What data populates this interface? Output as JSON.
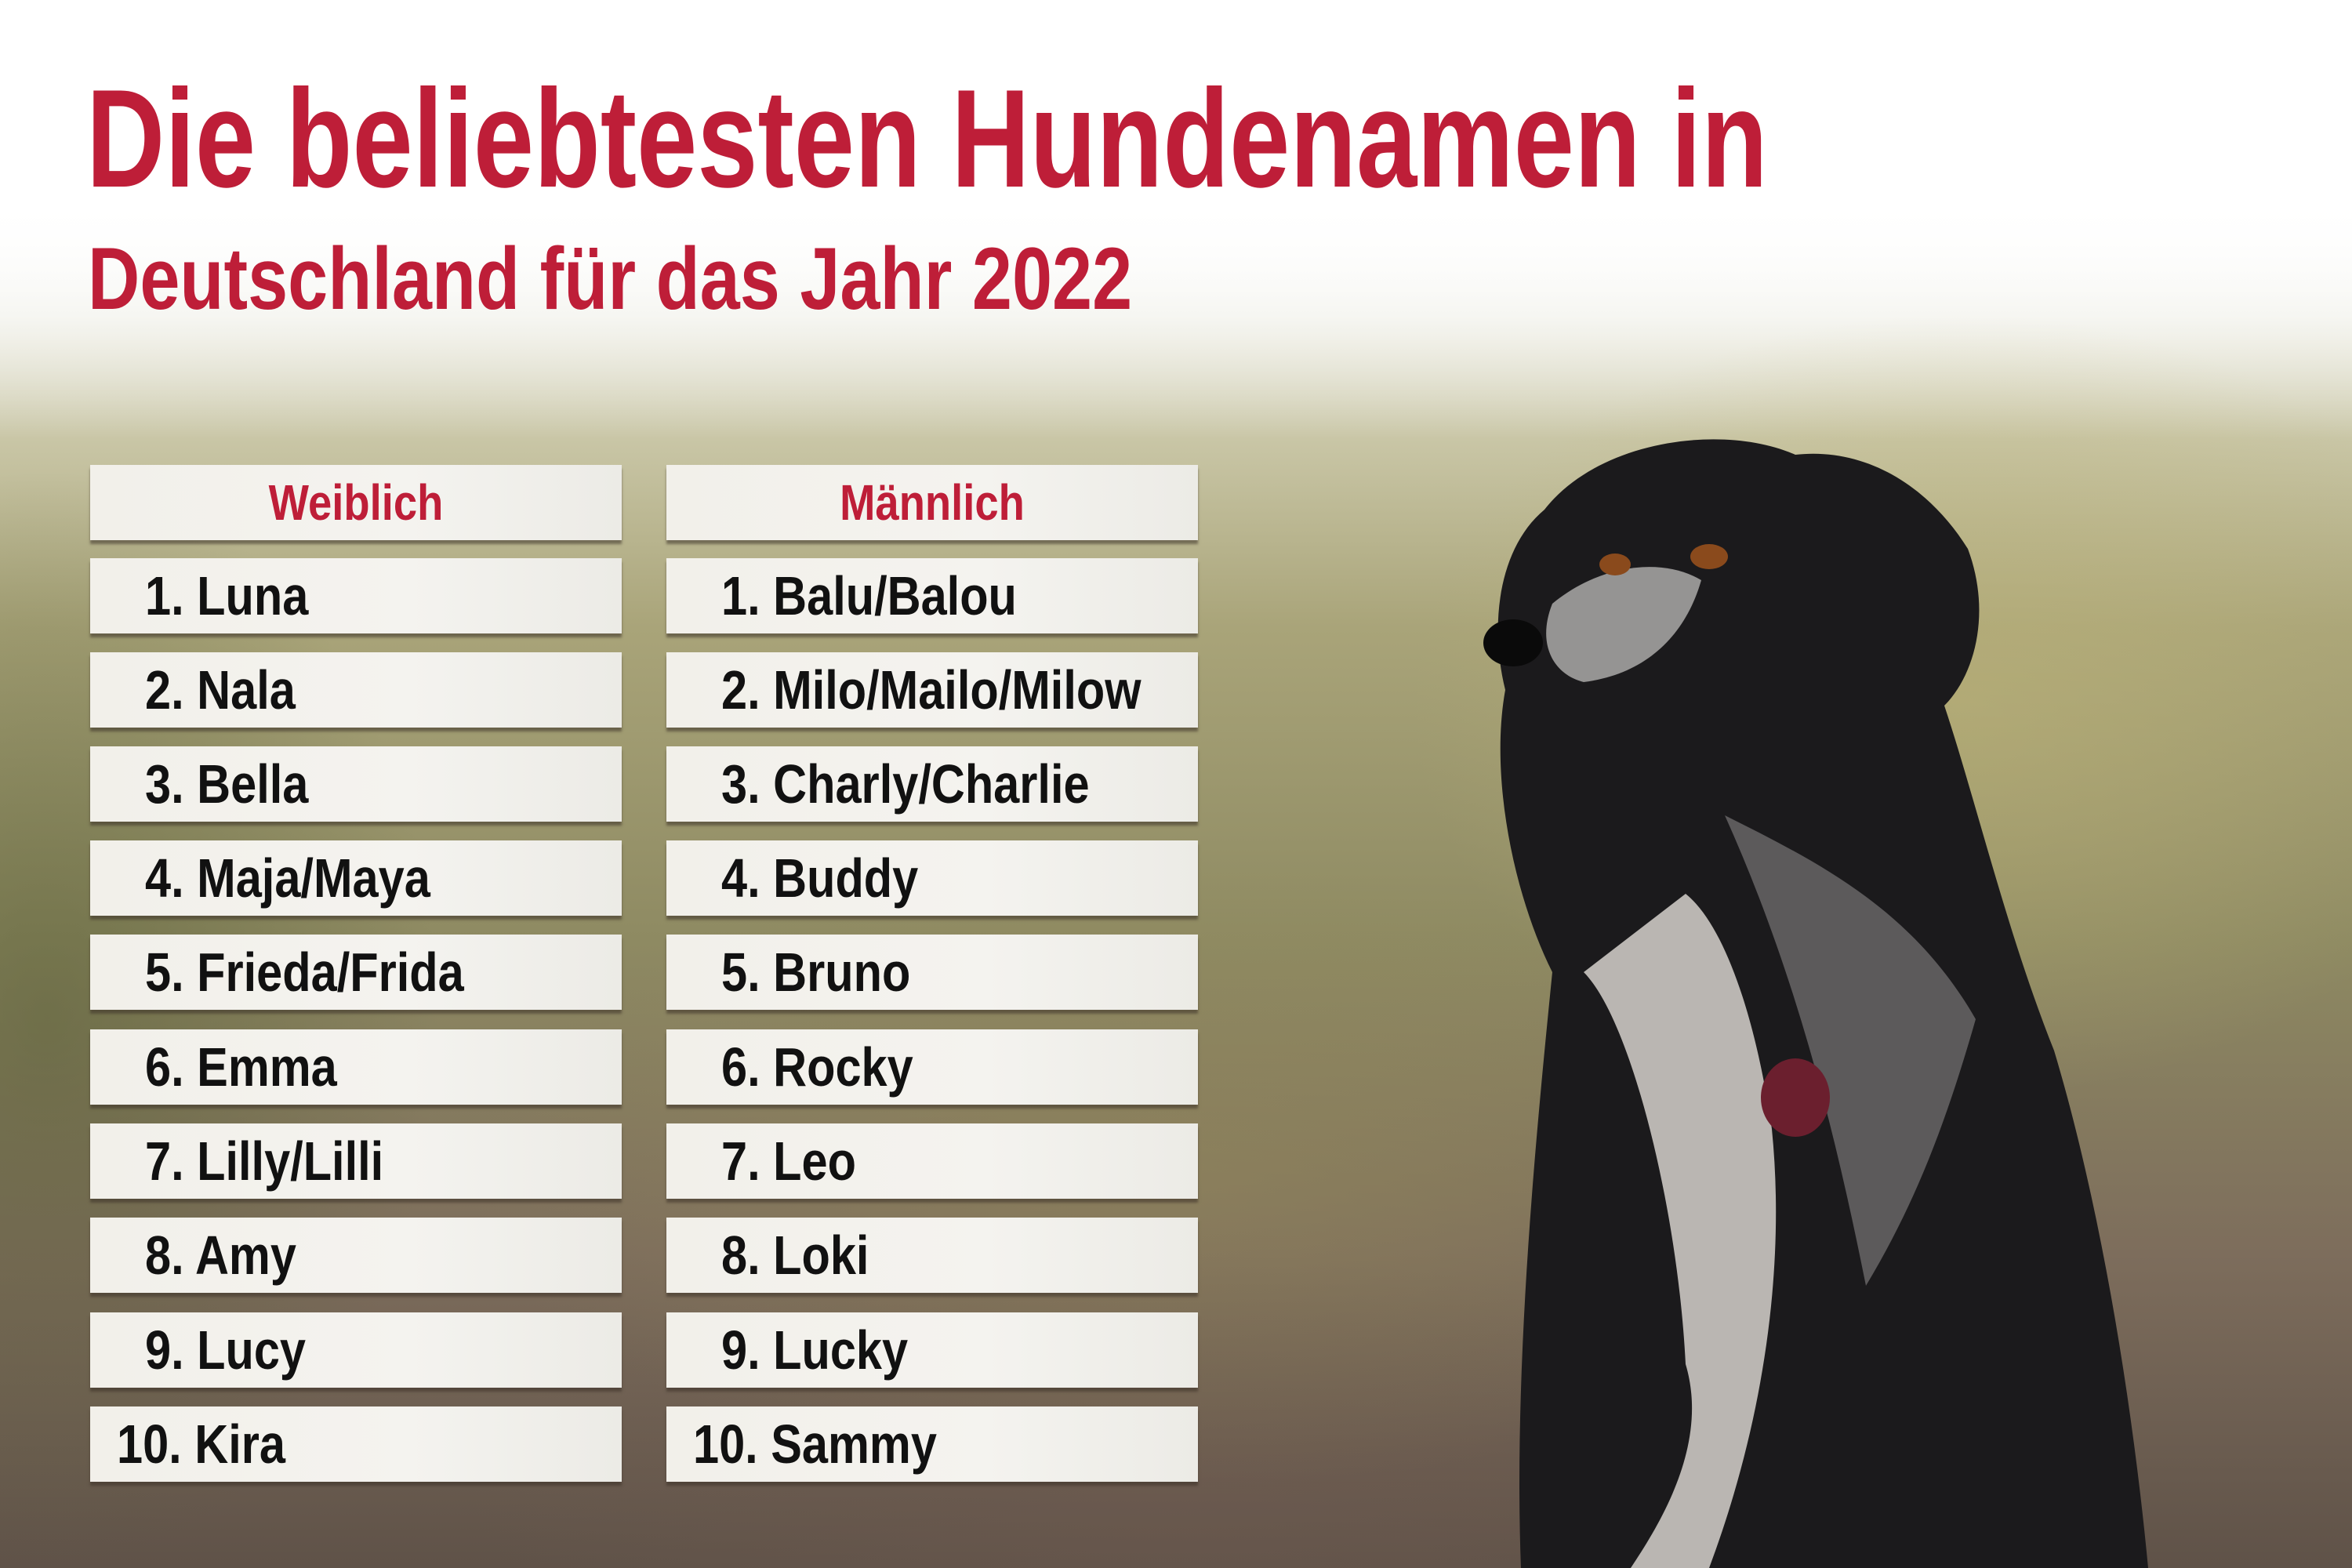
{
  "title_line1": "Die beliebtesten Hundenamen in",
  "title_line2": "Deutschland für das Jahr 2022",
  "colors": {
    "accent": "#be1e38"
  },
  "columns": [
    {
      "header": "Weiblich",
      "names": [
        "1. Luna",
        "2. Nala",
        "3. Bella",
        "4. Maja/Maya",
        "5. Frieda/Frida",
        "6. Emma",
        "7. Lilly/Lilli",
        "8. Amy",
        "9. Lucy",
        "10. Kira"
      ]
    },
    {
      "header": "Männlich",
      "names": [
        "1. Balu/Balou",
        "2. Milo/Mailo/Milow",
        "3. Charly/Charlie",
        "4. Buddy",
        "5. Bruno",
        "6. Rocky",
        "7. Leo",
        "8. Loki",
        "9. Lucky",
        "10. Sammy"
      ]
    }
  ]
}
